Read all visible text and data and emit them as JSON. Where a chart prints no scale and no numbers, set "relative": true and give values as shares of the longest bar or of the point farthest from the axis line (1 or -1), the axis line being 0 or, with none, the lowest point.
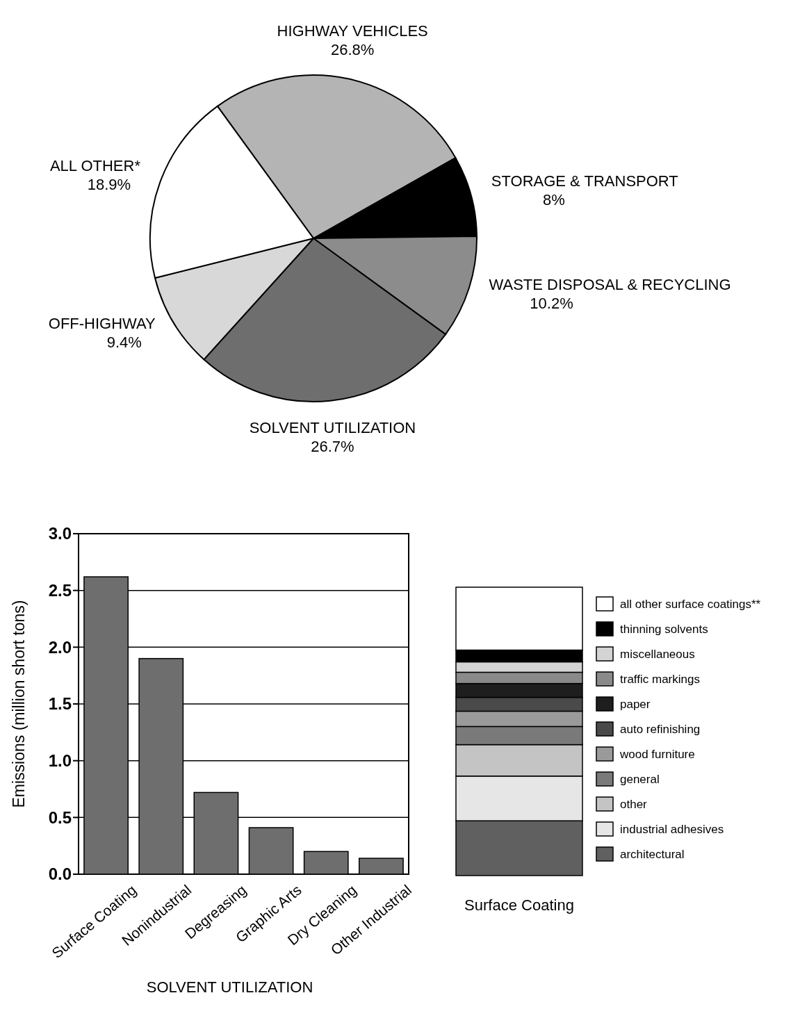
{
  "chart_data": [
    {
      "type": "pie",
      "categories": [
        "HIGHWAY VEHICLES",
        "STORAGE & TRANSPORT",
        "WASTE DISPOSAL & RECYCLING",
        "SOLVENT UTILIZATION",
        "OFF-HIGHWAY",
        "ALL OTHER*"
      ],
      "values": [
        26.8,
        8,
        10.2,
        26.7,
        9.4,
        18.9
      ],
      "value_labels": [
        "26.8%",
        "8%",
        "10.2%",
        "26.7%",
        "9.4%",
        "18.9%"
      ],
      "colors": [
        "#b4b4b4",
        "#000000",
        "#8c8c8c",
        "#6e6e6e",
        "#d8d8d8",
        "#ffffff"
      ]
    },
    {
      "type": "bar",
      "categories": [
        "Surface Coating",
        "Nonindustrial",
        "Degreasing",
        "Graphic Arts",
        "Dry Cleaning",
        "Other Industrial"
      ],
      "values": [
        2.62,
        1.9,
        0.72,
        0.41,
        0.2,
        0.14
      ],
      "color": "#6e6e6e",
      "ylim": [
        0,
        3
      ],
      "yticks": [
        {
          "value": 0,
          "label": "0.0"
        },
        0.5,
        {
          "value": 1,
          "label": "1.0"
        },
        1.5,
        {
          "value": 2,
          "label": "2.0"
        },
        2.5,
        {
          "value": 3,
          "label": "3.0"
        }
      ],
      "grid": "y",
      "xlabel": "SOLVENT UTILIZATION",
      "ylabel": "Emissions (million short tons)"
    },
    {
      "type": "bar",
      "stacked": true,
      "relative": true,
      "legend": "right",
      "categories": [
        "Surface Coating"
      ],
      "series": [
        {
          "name": "architectural",
          "color": "#606060",
          "values": [
            0.19
          ]
        },
        {
          "name": "industrial adhesives",
          "color": "#e6e6e6",
          "values": [
            0.155
          ]
        },
        {
          "name": "other",
          "color": "#c4c4c4",
          "values": [
            0.109
          ]
        },
        {
          "name": "general",
          "color": "#7a7a7a",
          "values": [
            0.063
          ]
        },
        {
          "name": "wood furniture",
          "color": "#9a9a9a",
          "values": [
            0.053
          ]
        },
        {
          "name": "auto refinishing",
          "color": "#4a4a4a",
          "values": [
            0.048
          ]
        },
        {
          "name": "paper",
          "color": "#1e1e1e",
          "values": [
            0.048
          ]
        },
        {
          "name": "traffic markings",
          "color": "#8a8a8a",
          "values": [
            0.039
          ]
        },
        {
          "name": "miscellaneous",
          "color": "#d4d4d4",
          "values": [
            0.036
          ]
        },
        {
          "name": "thinning solvents",
          "color": "#000000",
          "values": [
            0.041
          ]
        },
        {
          "name": "all other surface coatings**",
          "color": "#ffffff",
          "values": [
            0.218
          ]
        }
      ]
    }
  ]
}
